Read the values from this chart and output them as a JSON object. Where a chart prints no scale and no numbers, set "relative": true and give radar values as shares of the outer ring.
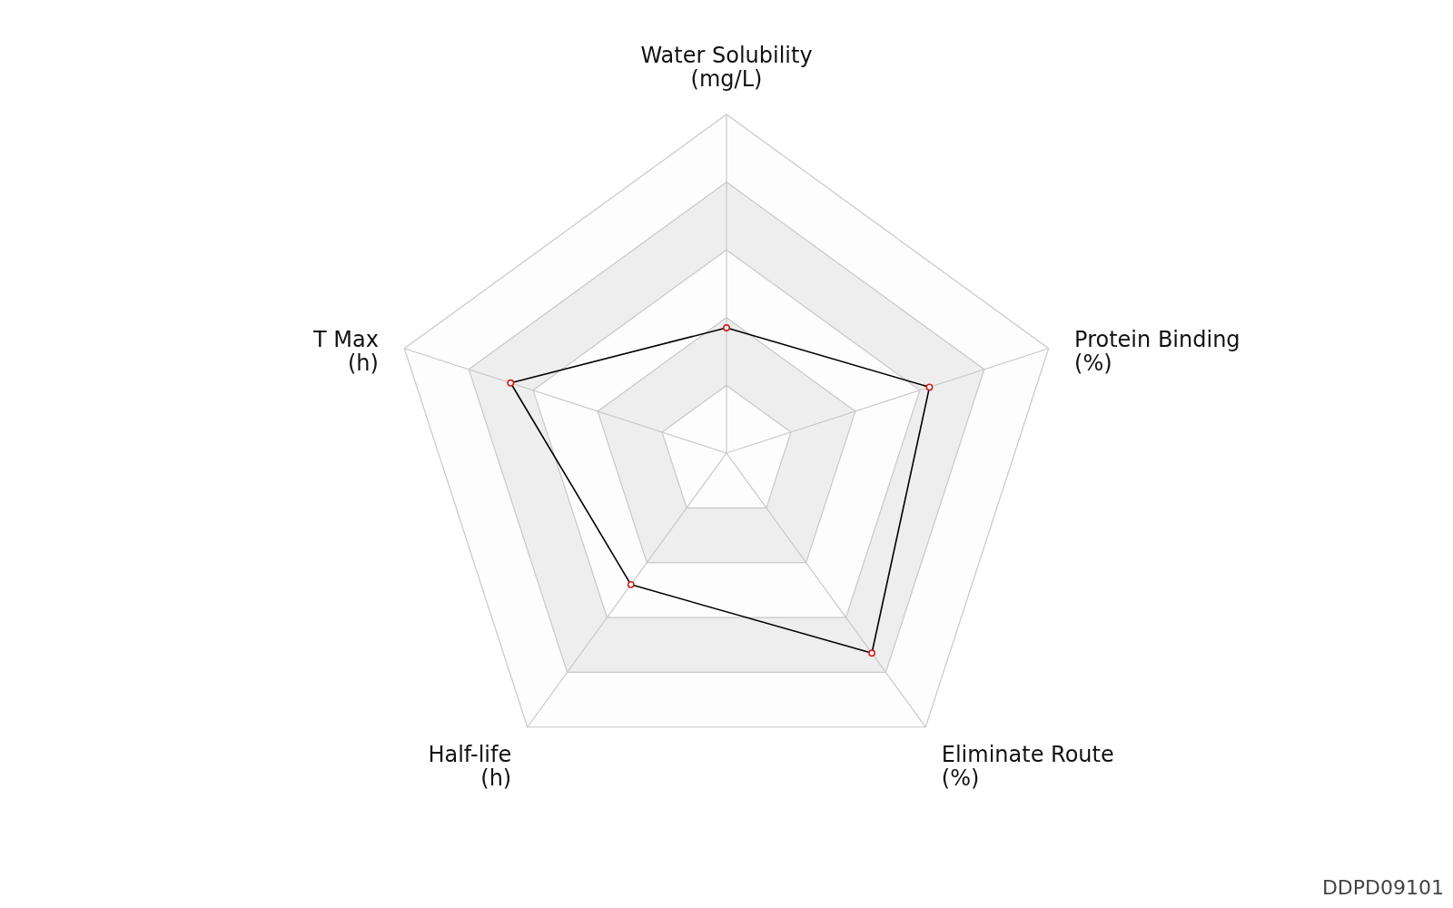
{
  "chart_data": {
    "type": "radar",
    "relative": true,
    "categories": [
      "Water Solubility\n(mg/L)",
      "Protein Binding\n(%)",
      "Eliminate Route\n(%)",
      "Half-life\n(h)",
      "T Max\n(h)"
    ],
    "series": [
      {
        "color": "#000000",
        "values": [
          0.37,
          0.63,
          0.73,
          0.48,
          0.67
        ]
      }
    ],
    "marker": "circle",
    "line_style": "solid",
    "annotations": [
      "DDPD09101"
    ]
  }
}
